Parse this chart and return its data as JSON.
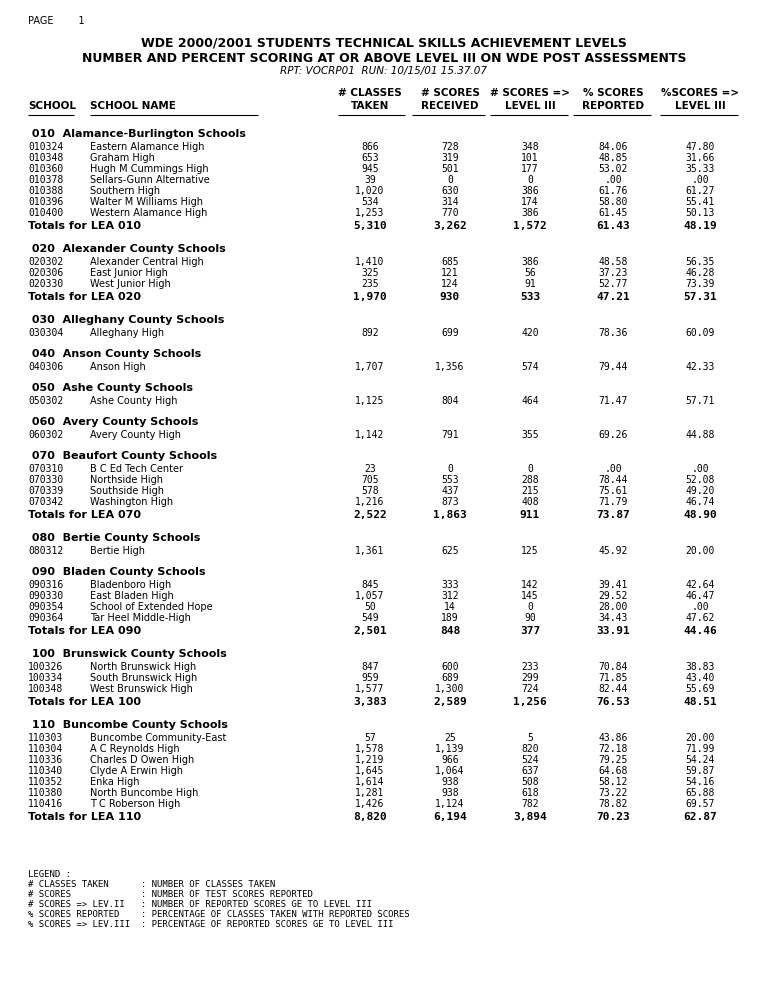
{
  "page_label": "PAGE        1",
  "title_line1": "WDE 2000/2001 STUDENTS TECHNICAL SKILLS ACHIEVEMENT LEVELS",
  "title_line2": "NUMBER AND PERCENT SCORING AT OR ABOVE LEVEL III ON WDE POST ASSESSMENTS",
  "title_line3": "RPT: VOCRP01  RUN: 10/15/01 15.37.07",
  "col_headers": [
    "# CLASSES",
    "# SCORES",
    "# SCORES =>",
    "% SCORES",
    "%SCORES =>"
  ],
  "col_headers2": [
    "TAKEN",
    "RECEIVED",
    "LEVEL III",
    "REPORTED",
    "LEVEL III"
  ],
  "sections": [
    {
      "group_id": "010",
      "group_name": "Alamance-Burlington Schools",
      "schools": [
        [
          "010324",
          "Eastern Alamance High",
          "866",
          "728",
          "348",
          "84.06",
          "47.80"
        ],
        [
          "010348",
          "Graham High",
          "653",
          "319",
          "101",
          "48.85",
          "31.66"
        ],
        [
          "010360",
          "Hugh M Cummings High",
          "945",
          "501",
          "177",
          "53.02",
          "35.33"
        ],
        [
          "010378",
          "Sellars-Gunn Alternative",
          "39",
          "0",
          "0",
          ".00",
          ".00"
        ],
        [
          "010388",
          "Southern High",
          "1,020",
          "630",
          "386",
          "61.76",
          "61.27"
        ],
        [
          "010396",
          "Walter M Williams High",
          "534",
          "314",
          "174",
          "58.80",
          "55.41"
        ],
        [
          "010400",
          "Western Alamance High",
          "1,253",
          "770",
          "386",
          "61.45",
          "50.13"
        ]
      ],
      "total_label": "Totals for LEA 010",
      "totals": [
        "5,310",
        "3,262",
        "1,572",
        "61.43",
        "48.19"
      ]
    },
    {
      "group_id": "020",
      "group_name": "Alexander County Schools",
      "schools": [
        [
          "020302",
          "Alexander Central High",
          "1,410",
          "685",
          "386",
          "48.58",
          "56.35"
        ],
        [
          "020306",
          "East Junior High",
          "325",
          "121",
          "56",
          "37.23",
          "46.28"
        ],
        [
          "020330",
          "West Junior High",
          "235",
          "124",
          "91",
          "52.77",
          "73.39"
        ]
      ],
      "total_label": "Totals for LEA 020",
      "totals": [
        "1,970",
        "930",
        "533",
        "47.21",
        "57.31"
      ]
    },
    {
      "group_id": "030",
      "group_name": "Alleghany County Schools",
      "schools": [
        [
          "030304",
          "Alleghany High",
          "892",
          "699",
          "420",
          "78.36",
          "60.09"
        ]
      ],
      "total_label": null,
      "totals": null
    },
    {
      "group_id": "040",
      "group_name": "Anson County Schools",
      "schools": [
        [
          "040306",
          "Anson High",
          "1,707",
          "1,356",
          "574",
          "79.44",
          "42.33"
        ]
      ],
      "total_label": null,
      "totals": null
    },
    {
      "group_id": "050",
      "group_name": "Ashe County Schools",
      "schools": [
        [
          "050302",
          "Ashe County High",
          "1,125",
          "804",
          "464",
          "71.47",
          "57.71"
        ]
      ],
      "total_label": null,
      "totals": null
    },
    {
      "group_id": "060",
      "group_name": "Avery County Schools",
      "schools": [
        [
          "060302",
          "Avery County High",
          "1,142",
          "791",
          "355",
          "69.26",
          "44.88"
        ]
      ],
      "total_label": null,
      "totals": null
    },
    {
      "group_id": "070",
      "group_name": "Beaufort County Schools",
      "schools": [
        [
          "070310",
          "B C Ed Tech Center",
          "23",
          "0",
          "0",
          ".00",
          ".00"
        ],
        [
          "070330",
          "Northside High",
          "705",
          "553",
          "288",
          "78.44",
          "52.08"
        ],
        [
          "070339",
          "Southside High",
          "578",
          "437",
          "215",
          "75.61",
          "49.20"
        ],
        [
          "070342",
          "Washington High",
          "1,216",
          "873",
          "408",
          "71.79",
          "46.74"
        ]
      ],
      "total_label": "Totals for LEA 070",
      "totals": [
        "2,522",
        "1,863",
        "911",
        "73.87",
        "48.90"
      ]
    },
    {
      "group_id": "080",
      "group_name": "Bertie County Schools",
      "schools": [
        [
          "080312",
          "Bertie High",
          "1,361",
          "625",
          "125",
          "45.92",
          "20.00"
        ]
      ],
      "total_label": null,
      "totals": null
    },
    {
      "group_id": "090",
      "group_name": "Bladen County Schools",
      "schools": [
        [
          "090316",
          "Bladenboro High",
          "845",
          "333",
          "142",
          "39.41",
          "42.64"
        ],
        [
          "090330",
          "East Bladen High",
          "1,057",
          "312",
          "145",
          "29.52",
          "46.47"
        ],
        [
          "090354",
          "School of Extended Hope",
          "50",
          "14",
          "0",
          "28.00",
          ".00"
        ],
        [
          "090364",
          "Tar Heel Middle-High",
          "549",
          "189",
          "90",
          "34.43",
          "47.62"
        ]
      ],
      "total_label": "Totals for LEA 090",
      "totals": [
        "2,501",
        "848",
        "377",
        "33.91",
        "44.46"
      ]
    },
    {
      "group_id": "100",
      "group_name": "Brunswick County Schools",
      "schools": [
        [
          "100326",
          "North Brunswick High",
          "847",
          "600",
          "233",
          "70.84",
          "38.83"
        ],
        [
          "100334",
          "South Brunswick High",
          "959",
          "689",
          "299",
          "71.85",
          "43.40"
        ],
        [
          "100348",
          "West Brunswick High",
          "1,577",
          "1,300",
          "724",
          "82.44",
          "55.69"
        ]
      ],
      "total_label": "Totals for LEA 100",
      "totals": [
        "3,383",
        "2,589",
        "1,256",
        "76.53",
        "48.51"
      ]
    },
    {
      "group_id": "110",
      "group_name": "Buncombe County Schools",
      "schools": [
        [
          "110303",
          "Buncombe Community-East",
          "57",
          "25",
          "5",
          "43.86",
          "20.00"
        ],
        [
          "110304",
          "A C Reynolds High",
          "1,578",
          "1,139",
          "820",
          "72.18",
          "71.99"
        ],
        [
          "110336",
          "Charles D Owen High",
          "1,219",
          "966",
          "524",
          "79.25",
          "54.24"
        ],
        [
          "110340",
          "Clyde A Erwin High",
          "1,645",
          "1,064",
          "637",
          "64.68",
          "59.87"
        ],
        [
          "110352",
          "Enka High",
          "1,614",
          "938",
          "508",
          "58.12",
          "54.16"
        ],
        [
          "110380",
          "North Buncombe High",
          "1,281",
          "938",
          "618",
          "73.22",
          "65.88"
        ],
        [
          "110416",
          "T C Roberson High",
          "1,426",
          "1,124",
          "782",
          "78.82",
          "69.57"
        ]
      ],
      "total_label": "Totals for LEA 110",
      "totals": [
        "8,820",
        "6,194",
        "3,894",
        "70.23",
        "62.87"
      ]
    }
  ],
  "legend_lines": [
    "LEGEND :",
    "# CLASSES TAKEN      : NUMBER OF CLASSES TAKEN",
    "# SCORES             : NUMBER OF TEST SCORES REPORTED",
    "# SCORES => LEV.II   : NUMBER OF REPORTED SCORES GE TO LEVEL III",
    "% SCORES REPORTED    : PERCENTAGE OF CLASSES TAKEN WITH REPORTED SCORES",
    "% SCORES => LEV.III  : PERCENTAGE OF REPORTED SCORES GE TO LEVEL III"
  ],
  "bg_color": "#ffffff",
  "text_color": "#000000"
}
